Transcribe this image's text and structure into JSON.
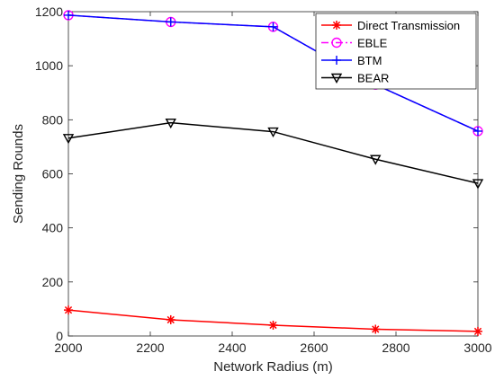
{
  "chart_data": {
    "type": "line",
    "title": "",
    "xlabel": "Network Radius (m)",
    "ylabel": "Sending Rounds",
    "xlim": [
      2000,
      3000
    ],
    "ylim": [
      0,
      1200
    ],
    "x_ticks": [
      2000,
      2200,
      2400,
      2600,
      2800,
      3000
    ],
    "y_ticks": [
      0,
      200,
      400,
      600,
      800,
      1000,
      1200
    ],
    "grid": false,
    "legend_position": "top-right",
    "x": [
      2000,
      2250,
      2500,
      2750,
      3000
    ],
    "series": [
      {
        "name": "Direct Transmission",
        "color": "#ff0000",
        "marker": "asterisk",
        "line_style": "solid",
        "values": [
          96,
          60,
          40,
          25,
          17
        ]
      },
      {
        "name": "EBLE",
        "color": "#ff00ff",
        "marker": "circle",
        "line_style": "dashdot",
        "values": [
          1187,
          1162,
          1144,
          930,
          758
        ]
      },
      {
        "name": "BTM",
        "color": "#0000ff",
        "marker": "plus",
        "line_style": "solid",
        "values": [
          1187,
          1162,
          1144,
          930,
          758
        ]
      },
      {
        "name": "BEAR",
        "color": "#000000",
        "marker": "triangle-down",
        "line_style": "solid",
        "values": [
          732,
          789,
          756,
          654,
          565
        ]
      }
    ]
  }
}
